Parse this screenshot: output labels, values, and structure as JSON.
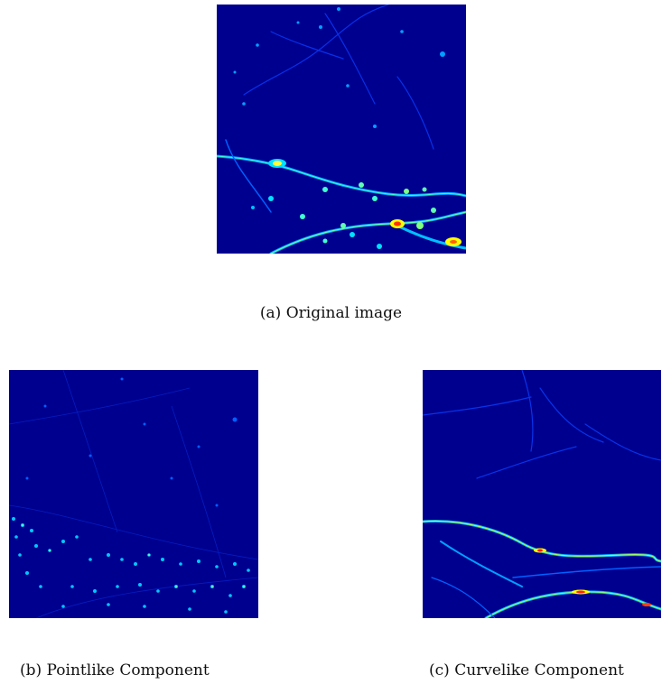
{
  "figure": {
    "panels": [
      {
        "id": "a",
        "caption": "(a) Original image"
      },
      {
        "id": "b",
        "caption": "(b) Pointlike Component"
      },
      {
        "id": "c",
        "caption": "(c) Curvelike Component"
      }
    ],
    "colormap": {
      "name": "jet",
      "background": "#00008f",
      "low": "#0000ff",
      "mid_low": "#00bfff",
      "mid": "#7fff7f",
      "high": "#ffff00",
      "peak": "#ff0000"
    }
  }
}
